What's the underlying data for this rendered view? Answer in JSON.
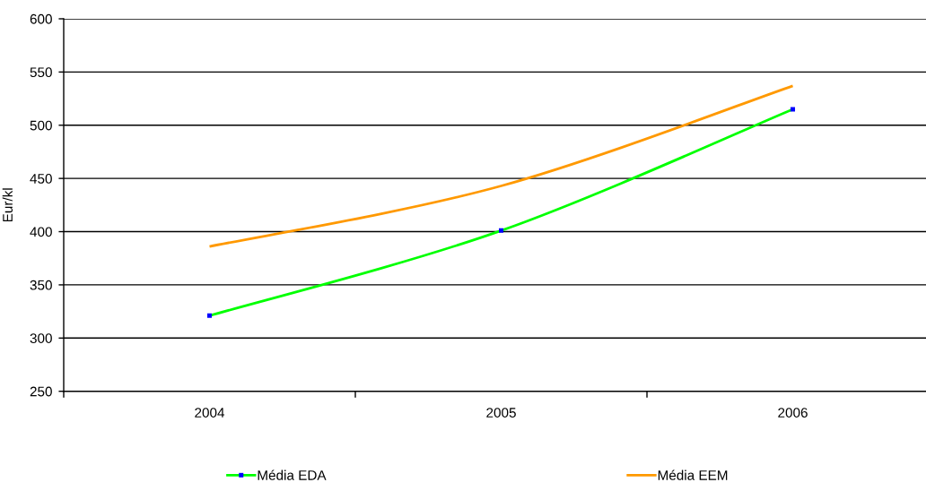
{
  "chart_data": {
    "type": "line",
    "ylabel": "Eur/kl",
    "categories": [
      "2004",
      "2005",
      "2006"
    ],
    "series": [
      {
        "name": "Média EDA",
        "color": "#00ff00",
        "values": [
          321,
          401,
          515
        ],
        "marker": "square",
        "colors": [
          "#0000ff",
          "#0000ff",
          "#0000ff"
        ]
      },
      {
        "name": "Média EEM",
        "color": "#ff9900",
        "values": [
          386,
          443,
          537
        ]
      }
    ],
    "ylim": [
      250,
      600
    ],
    "yticks": [
      250,
      300,
      350,
      400,
      450,
      500,
      550,
      600
    ],
    "grid": "y",
    "legend": "bottom",
    "line_style": "solid"
  }
}
